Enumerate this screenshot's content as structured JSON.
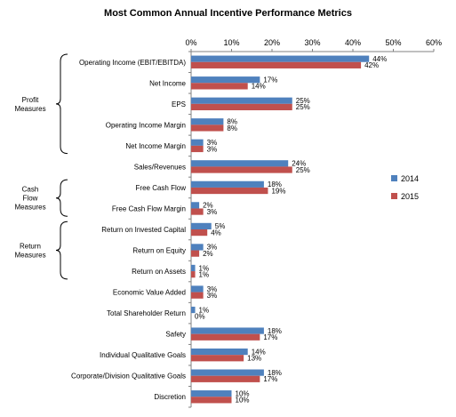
{
  "chart_data": {
    "type": "bar",
    "orientation": "horizontal",
    "title": "Most Common Annual Incentive Performance Metrics",
    "xlim": [
      0,
      60
    ],
    "x_ticks": [
      "0%",
      "10%",
      "20%",
      "30%",
      "40%",
      "50%",
      "60%"
    ],
    "grid": false,
    "legend_position": "right",
    "categories": [
      "Operating Income (EBIT/EBITDA)",
      "Net Income",
      "EPS",
      "Operating Income Margin",
      "Net Income Margin",
      "Sales/Revenues",
      "Free Cash Flow",
      "Free Cash Flow Margin",
      "Return on Invested Capital",
      "Return on Equity",
      "Return on Assets",
      "Economic Value Added",
      "Total Shareholder Return",
      "Safety",
      "Individual Qualitative Goals",
      "Corporate/Division Qualitative Goals",
      "Discretion"
    ],
    "series": [
      {
        "name": "2014",
        "color": "#4f81bd",
        "values": [
          44,
          17,
          25,
          8,
          3,
          24,
          18,
          2,
          5,
          3,
          1,
          3,
          1,
          18,
          14,
          18,
          10
        ],
        "labels": [
          "44%",
          "17%",
          "25%",
          "8%",
          "3%",
          "24%",
          "18%",
          "2%",
          "5%",
          "3%",
          "1%",
          "3%",
          "1%",
          "18%",
          "14%",
          "18%",
          "10%"
        ]
      },
      {
        "name": "2015",
        "color": "#c0504d",
        "values": [
          42,
          14,
          25,
          8,
          3,
          25,
          19,
          3,
          4,
          2,
          1,
          3,
          0,
          17,
          13,
          17,
          10
        ],
        "labels": [
          "42%",
          "14%",
          "25%",
          "8%",
          "3%",
          "25%",
          "19%",
          "3%",
          "4%",
          "2%",
          "1%",
          "3%",
          "0%",
          "17%",
          "13%",
          "17%",
          "10%"
        ]
      }
    ],
    "groups": [
      {
        "label_lines": [
          "Profit",
          "Measures"
        ],
        "first": 0,
        "last": 4
      },
      {
        "label_lines": [
          "Cash",
          "Flow",
          "Measures"
        ],
        "first": 6,
        "last": 7
      },
      {
        "label_lines": [
          "Return",
          "Measures"
        ],
        "first": 8,
        "last": 10
      }
    ]
  }
}
